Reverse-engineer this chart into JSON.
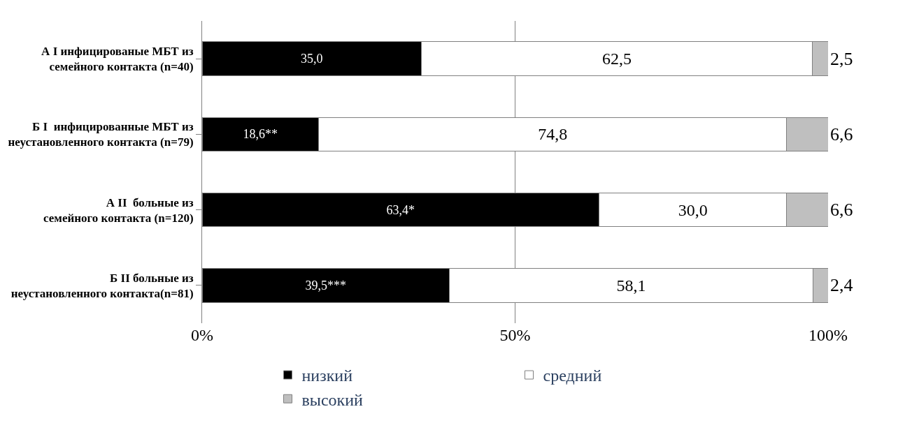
{
  "chart_data": {
    "type": "bar",
    "orientation": "horizontal",
    "stacked": true,
    "categories": [
      "А I инфицированые МБТ из семейного контакта (n=40)",
      "Б I  инфицированные МБТ из неустановленного контакта (n=79)",
      "А II  больные из семейного контакта (n=120)",
      "Б II больные из неустановленного контакта(n=81)"
    ],
    "series": [
      {
        "name": "низкий",
        "color": "#000000",
        "values": [
          35.0,
          18.6,
          63.4,
          39.5
        ],
        "value_labels": [
          "35,0",
          "18,6**",
          "63,4*",
          "39,5***"
        ]
      },
      {
        "name": "средний",
        "color": "#ffffff",
        "values": [
          62.5,
          74.8,
          30.0,
          58.1
        ],
        "value_labels": [
          "62,5",
          "74,8",
          "30,0",
          "58,1"
        ]
      },
      {
        "name": "высокий",
        "color": "#bfbfbf",
        "values": [
          2.5,
          6.6,
          6.6,
          2.4
        ],
        "value_labels": [
          "2,5",
          "6,6",
          "6,6",
          "2,4"
        ]
      }
    ],
    "xlim": [
      0,
      100
    ],
    "xticks": [
      {
        "value": 0,
        "label": "0%"
      },
      {
        "value": 50,
        "label": "50%"
      },
      {
        "value": 100,
        "label": "100%"
      }
    ],
    "grid": "x",
    "legend": "bottom"
  }
}
